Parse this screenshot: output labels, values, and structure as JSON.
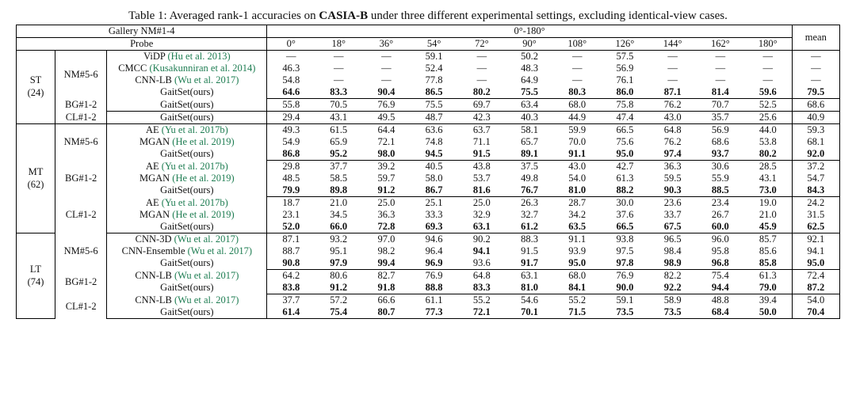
{
  "caption_prefix": "Table 1: Averaged rank-1 accuracies on ",
  "caption_bold": "CASIA-B",
  "caption_suffix": " under three different experimental settings, excluding identical-view cases.",
  "header": {
    "gallery": "Gallery NM#1-4",
    "angle_range": "0°-180°",
    "mean": "mean",
    "probe": "Probe",
    "angles": [
      "0°",
      "18°",
      "36°",
      "54°",
      "72°",
      "90°",
      "108°",
      "126°",
      "144°",
      "162°",
      "180°"
    ]
  },
  "groups": [
    {
      "label": "ST",
      "paren": "(24)",
      "blocks": [
        {
          "probe": "NM#5-6",
          "rows": [
            {
              "method": "ViDP",
              "ref": "(Hu et al. 2013)",
              "v": [
                "—",
                "—",
                "—",
                "59.1",
                "—",
                "50.2",
                "—",
                "57.5",
                "—",
                "—",
                "—"
              ],
              "mean": "—"
            },
            {
              "method": "CMCC",
              "ref": "(Kusakunniran et al. 2014)",
              "v": [
                "46.3",
                "—",
                "—",
                "52.4",
                "—",
                "48.3",
                "—",
                "56.9",
                "—",
                "—",
                "—"
              ],
              "mean": "—"
            },
            {
              "method": "CNN-LB",
              "ref": "(Wu et al. 2017)",
              "v": [
                "54.8",
                "—",
                "—",
                "77.8",
                "—",
                "64.9",
                "—",
                "76.1",
                "—",
                "—",
                "—"
              ],
              "mean": "—"
            },
            {
              "method": "GaitSet(ours)",
              "v": [
                "64.6",
                "83.3",
                "90.4",
                "86.5",
                "80.2",
                "75.5",
                "80.3",
                "86.0",
                "87.1",
                "81.4",
                "59.6"
              ],
              "mean": "79.5",
              "bold": true
            }
          ]
        },
        {
          "probe": "BG#1-2",
          "rows": [
            {
              "method": "GaitSet(ours)",
              "v": [
                "55.8",
                "70.5",
                "76.9",
                "75.5",
                "69.7",
                "63.4",
                "68.0",
                "75.8",
                "76.2",
                "70.7",
                "52.5"
              ],
              "mean": "68.6"
            }
          ]
        },
        {
          "probe": "CL#1-2",
          "rows": [
            {
              "method": "GaitSet(ours)",
              "v": [
                "29.4",
                "43.1",
                "49.5",
                "48.7",
                "42.3",
                "40.3",
                "44.9",
                "47.4",
                "43.0",
                "35.7",
                "25.6"
              ],
              "mean": "40.9"
            }
          ]
        }
      ]
    },
    {
      "label": "MT",
      "paren": "(62)",
      "blocks": [
        {
          "probe": "NM#5-6",
          "rows": [
            {
              "method": "AE",
              "ref": "(Yu et al. 2017b)",
              "v": [
                "49.3",
                "61.5",
                "64.4",
                "63.6",
                "63.7",
                "58.1",
                "59.9",
                "66.5",
                "64.8",
                "56.9",
                "44.0"
              ],
              "mean": "59.3"
            },
            {
              "method": "MGAN",
              "ref": "(He et al. 2019)",
              "v": [
                "54.9",
                "65.9",
                "72.1",
                "74.8",
                "71.1",
                "65.7",
                "70.0",
                "75.6",
                "76.2",
                "68.6",
                "53.8"
              ],
              "mean": "68.1"
            },
            {
              "method": "GaitSet(ours)",
              "v": [
                "86.8",
                "95.2",
                "98.0",
                "94.5",
                "91.5",
                "89.1",
                "91.1",
                "95.0",
                "97.4",
                "93.7",
                "80.2"
              ],
              "mean": "92.0",
              "bold": true
            }
          ]
        },
        {
          "probe": "BG#1-2",
          "rows": [
            {
              "method": "AE",
              "ref": "(Yu et al. 2017b)",
              "v": [
                "29.8",
                "37.7",
                "39.2",
                "40.5",
                "43.8",
                "37.5",
                "43.0",
                "42.7",
                "36.3",
                "30.6",
                "28.5"
              ],
              "mean": "37.2"
            },
            {
              "method": "MGAN",
              "ref": "(He et al. 2019)",
              "v": [
                "48.5",
                "58.5",
                "59.7",
                "58.0",
                "53.7",
                "49.8",
                "54.0",
                "61.3",
                "59.5",
                "55.9",
                "43.1"
              ],
              "mean": "54.7"
            },
            {
              "method": "GaitSet(ours)",
              "v": [
                "79.9",
                "89.8",
                "91.2",
                "86.7",
                "81.6",
                "76.7",
                "81.0",
                "88.2",
                "90.3",
                "88.5",
                "73.0"
              ],
              "mean": "84.3",
              "bold": true
            }
          ]
        },
        {
          "probe": "CL#1-2",
          "rows": [
            {
              "method": "AE",
              "ref": "(Yu et al. 2017b)",
              "v": [
                "18.7",
                "21.0",
                "25.0",
                "25.1",
                "25.0",
                "26.3",
                "28.7",
                "30.0",
                "23.6",
                "23.4",
                "19.0"
              ],
              "mean": "24.2"
            },
            {
              "method": "MGAN",
              "ref": "(He et al. 2019)",
              "v": [
                "23.1",
                "34.5",
                "36.3",
                "33.3",
                "32.9",
                "32.7",
                "34.2",
                "37.6",
                "33.7",
                "26.7",
                "21.0"
              ],
              "mean": "31.5"
            },
            {
              "method": "GaitSet(ours)",
              "v": [
                "52.0",
                "66.0",
                "72.8",
                "69.3",
                "63.1",
                "61.2",
                "63.5",
                "66.5",
                "67.5",
                "60.0",
                "45.9"
              ],
              "mean": "62.5",
              "bold": true
            }
          ]
        }
      ]
    },
    {
      "label": "LT",
      "paren": "(74)",
      "blocks": [
        {
          "probe": "NM#5-6",
          "rows": [
            {
              "method": "CNN-3D",
              "ref": "(Wu et al. 2017)",
              "v": [
                "87.1",
                "93.2",
                "97.0",
                "94.6",
                "90.2",
                "88.3",
                "91.1",
                "93.8",
                "96.5",
                "96.0",
                "85.7"
              ],
              "mean": "92.1"
            },
            {
              "method": "CNN-Ensemble",
              "ref": "(Wu et al. 2017)",
              "v": [
                "88.7",
                "95.1",
                "98.2",
                "96.4",
                "94.1",
                "91.5",
                "93.9",
                "97.5",
                "98.4",
                "95.8",
                "85.6"
              ],
              "mean": "94.1",
              "boldcols": [
                4
              ]
            },
            {
              "method": "GaitSet(ours)",
              "v": [
                "90.8",
                "97.9",
                "99.4",
                "96.9",
                "93.6",
                "91.7",
                "95.0",
                "97.8",
                "98.9",
                "96.8",
                "85.8"
              ],
              "mean": "95.0",
              "bold": true,
              "skipbold": [
                4
              ]
            }
          ]
        },
        {
          "probe": "BG#1-2",
          "rows": [
            {
              "method": "CNN-LB",
              "ref": "(Wu et al. 2017)",
              "v": [
                "64.2",
                "80.6",
                "82.7",
                "76.9",
                "64.8",
                "63.1",
                "68.0",
                "76.9",
                "82.2",
                "75.4",
                "61.3"
              ],
              "mean": "72.4"
            },
            {
              "method": "GaitSet(ours)",
              "v": [
                "83.8",
                "91.2",
                "91.8",
                "88.8",
                "83.3",
                "81.0",
                "84.1",
                "90.0",
                "92.2",
                "94.4",
                "79.0"
              ],
              "mean": "87.2",
              "bold": true
            }
          ]
        },
        {
          "probe": "CL#1-2",
          "rows": [
            {
              "method": "CNN-LB",
              "ref": "(Wu et al. 2017)",
              "v": [
                "37.7",
                "57.2",
                "66.6",
                "61.1",
                "55.2",
                "54.6",
                "55.2",
                "59.1",
                "58.9",
                "48.8",
                "39.4"
              ],
              "mean": "54.0"
            },
            {
              "method": "GaitSet(ours)",
              "v": [
                "61.4",
                "75.4",
                "80.7",
                "77.3",
                "72.1",
                "70.1",
                "71.5",
                "73.5",
                "73.5",
                "68.4",
                "50.0"
              ],
              "mean": "70.4",
              "bold": true
            }
          ]
        }
      ]
    }
  ]
}
